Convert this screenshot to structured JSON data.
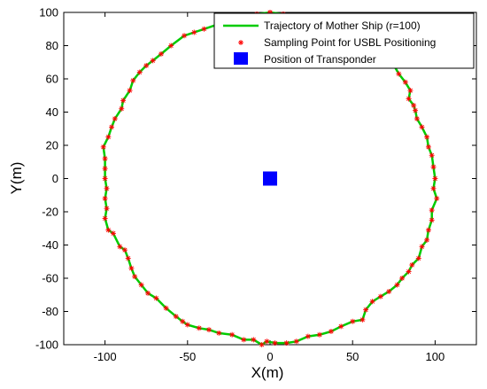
{
  "chart_data": {
    "type": "scatter",
    "title": "",
    "xlabel": "X(m)",
    "ylabel": "Y(m)",
    "xlim": [
      -125,
      125
    ],
    "ylim": [
      -100,
      100
    ],
    "xticks": [
      -100,
      -50,
      0,
      50,
      100
    ],
    "yticks": [
      -100,
      -80,
      -60,
      -40,
      -20,
      0,
      20,
      40,
      60,
      80,
      100
    ],
    "xtick_labels": [
      "-100",
      "-50",
      "0",
      "50",
      "100"
    ],
    "ytick_labels": [
      "-100",
      "-80",
      "-60",
      "-40",
      "-20",
      "0",
      "20",
      "40",
      "60",
      "80",
      "100"
    ],
    "grid": false,
    "legend_position": "top-right",
    "series": [
      {
        "name": "Trajectory of Mother Ship (r=100)",
        "kind": "line",
        "color": "#00cc00",
        "x": [
          0,
          8,
          15,
          23,
          30,
          37,
          44,
          51,
          57,
          63,
          69,
          74,
          78,
          82,
          85,
          84,
          87,
          88,
          89,
          92,
          95,
          96,
          98,
          99,
          100,
          99,
          101,
          98,
          98,
          96,
          95,
          92,
          90,
          86,
          84,
          80,
          77,
          72,
          67,
          62,
          58,
          56,
          50,
          43,
          37,
          30,
          23,
          16,
          10,
          3,
          -2,
          -5,
          -10,
          -16,
          -23,
          -31,
          -37,
          -43,
          -50,
          -53,
          -57,
          -63,
          -69,
          -74,
          -78,
          -82,
          -84,
          -86,
          -88,
          -91,
          -95,
          -98,
          -100,
          -99,
          -100,
          -99,
          -100,
          -100,
          -100,
          -101,
          -98,
          -96,
          -94,
          -90,
          -89,
          -85,
          -83,
          -79,
          -75,
          -71,
          -66,
          -60,
          -52,
          -46,
          -40,
          -31,
          -23,
          -15,
          -8,
          0
        ],
        "y": [
          100,
          99,
          97,
          97,
          95,
          94,
          90,
          86,
          82,
          80,
          75,
          70,
          63,
          58,
          53,
          48,
          44,
          41,
          36,
          31,
          25,
          19,
          14,
          7,
          0,
          -6,
          -12,
          -19,
          -25,
          -31,
          -37,
          -41,
          -48,
          -52,
          -56,
          -60,
          -64,
          -68,
          -71,
          -74,
          -79,
          -85,
          -86,
          -89,
          -92,
          -94,
          -95,
          -98,
          -99,
          -99,
          -98,
          -100,
          -97,
          -97,
          -94,
          -93,
          -91,
          -90,
          -88,
          -86,
          -83,
          -78,
          -72,
          -69,
          -64,
          -59,
          -54,
          -48,
          -43,
          -41,
          -33,
          -31,
          -24,
          -18,
          -12,
          -6,
          0,
          6,
          12,
          19,
          25,
          31,
          36,
          42,
          47,
          53,
          59,
          64,
          68,
          71,
          75,
          80,
          86,
          88,
          90,
          93,
          94,
          98,
          99,
          100
        ]
      },
      {
        "name": "Sampling Point for USBL Positioning",
        "kind": "marker",
        "marker": "asterisk",
        "color": "#ff0000"
      },
      {
        "name": "Position of Transponder",
        "kind": "marker",
        "marker": "square",
        "color": "#0000ff",
        "x": [
          0
        ],
        "y": [
          0
        ]
      }
    ]
  }
}
